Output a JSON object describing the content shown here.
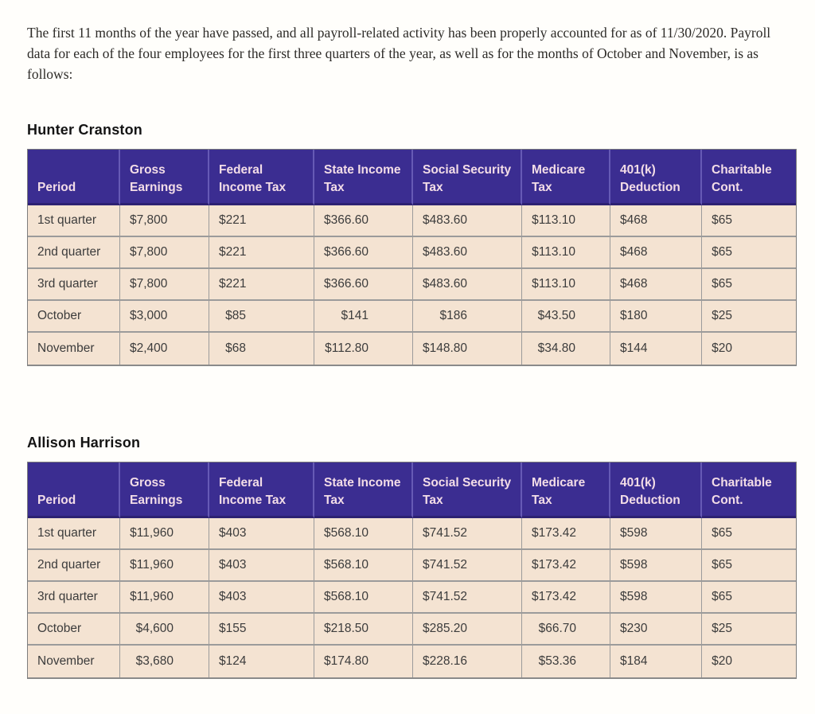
{
  "intro": {
    "text": "The first 11 months of the year have passed, and all payroll-related activity has been properly accounted for as of 11/30/2020. Payroll data for each of the four employees for the first three quarters of the year, as well as for the months of October and November, is as follows:"
  },
  "colors": {
    "table_header_bg": "#3b2d91",
    "table_header_text": "#f3dde7",
    "table_row_bg": "#f4e3d2",
    "table_border": "#9b9b9b"
  },
  "columns": [
    "Period",
    "Gross Earnings",
    "Federal Income Tax",
    "State Income Tax",
    "Social Security Tax",
    "Medicare Tax",
    "401(k) Deduction",
    "Charitable Cont."
  ],
  "tables": [
    {
      "employee": "Hunter Cranston",
      "rows": [
        [
          "1st quarter",
          "$7,800",
          "$221",
          "$366.60",
          "$483.60",
          "$113.10",
          "$468",
          "$65"
        ],
        [
          "2nd quarter",
          "$7,800",
          "$221",
          "$366.60",
          "$483.60",
          "$113.10",
          "$468",
          "$65"
        ],
        [
          "3rd quarter",
          "$7,800",
          "$221",
          "$366.60",
          "$483.60",
          "$113.10",
          "$468",
          "$65"
        ],
        [
          "October",
          "$3,000",
          "$85",
          "$141",
          "$186",
          "$43.50",
          "$180",
          "$25"
        ],
        [
          "November",
          "$2,400",
          "$68",
          "$112.80",
          "$148.80",
          "$34.80",
          "$144",
          "$20"
        ]
      ]
    },
    {
      "employee": "Allison Harrison",
      "rows": [
        [
          "1st quarter",
          "$11,960",
          "$403",
          "$568.10",
          "$741.52",
          "$173.42",
          "$598",
          "$65"
        ],
        [
          "2nd quarter",
          "$11,960",
          "$403",
          "$568.10",
          "$741.52",
          "$173.42",
          "$598",
          "$65"
        ],
        [
          "3rd quarter",
          "$11,960",
          "$403",
          "$568.10",
          "$741.52",
          "$173.42",
          "$598",
          "$65"
        ],
        [
          "October",
          "$4,600",
          "$155",
          "$218.50",
          "$285.20",
          "$66.70",
          "$230",
          "$25"
        ],
        [
          "November",
          "$3,680",
          "$124",
          "$174.80",
          "$228.16",
          "$53.36",
          "$184",
          "$20"
        ]
      ]
    }
  ]
}
